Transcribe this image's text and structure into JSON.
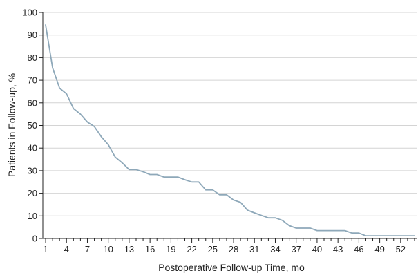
{
  "chart_data": {
    "type": "line",
    "xlabel": "Postoperative Follow-up Time, mo",
    "ylabel": "Patients in Follow-up, %",
    "xlim": [
      0.6,
      54.4
    ],
    "ylim": [
      0,
      100
    ],
    "x_ticks": [
      1,
      4,
      7,
      10,
      13,
      16,
      19,
      22,
      25,
      28,
      31,
      34,
      37,
      40,
      43,
      46,
      49,
      52
    ],
    "x_tick_labels": [
      "1",
      "4",
      "7",
      "10",
      "13",
      "16",
      "19",
      "22",
      "25",
      "28",
      "31",
      "34",
      "37",
      "40",
      "43",
      "46",
      "49",
      "52"
    ],
    "y_ticks": [
      0,
      10,
      20,
      30,
      40,
      50,
      60,
      70,
      80,
      90,
      100
    ],
    "y_tick_labels": [
      "0",
      "10",
      "20",
      "30",
      "40",
      "50",
      "60",
      "70",
      "80",
      "90",
      "100"
    ],
    "grid": "horizontal",
    "line_color": "#8ea8b9",
    "series": [
      {
        "x": [
          1,
          2,
          3,
          4,
          5,
          6,
          7,
          8,
          9,
          10,
          11,
          12,
          13,
          14,
          15,
          16,
          17,
          18,
          19,
          20,
          21,
          22,
          23,
          24,
          25,
          26,
          27,
          28,
          29,
          30,
          31,
          32,
          33,
          34,
          35,
          36,
          37,
          38,
          39,
          40,
          41,
          42,
          43,
          44,
          45,
          46,
          47,
          48,
          49,
          50,
          51,
          52,
          53,
          54
        ],
        "y": [
          94.5,
          75.5,
          66.5,
          64,
          57.5,
          55,
          51.5,
          49.5,
          45,
          41.5,
          36,
          33.5,
          30.5,
          30.5,
          29.5,
          28.3,
          28.3,
          27.2,
          27.2,
          27.2,
          26,
          25,
          25,
          21.5,
          21.5,
          19.3,
          19.3,
          17,
          16,
          12.5,
          11.3,
          10.2,
          9.1,
          9.1,
          8,
          5.7,
          4.6,
          4.6,
          4.6,
          3.5,
          3.5,
          3.5,
          3.5,
          3.5,
          2.4,
          2.4,
          1.2,
          1.2,
          1.2,
          1.2,
          1.2,
          1.2,
          1.2,
          1.2
        ]
      }
    ]
  }
}
